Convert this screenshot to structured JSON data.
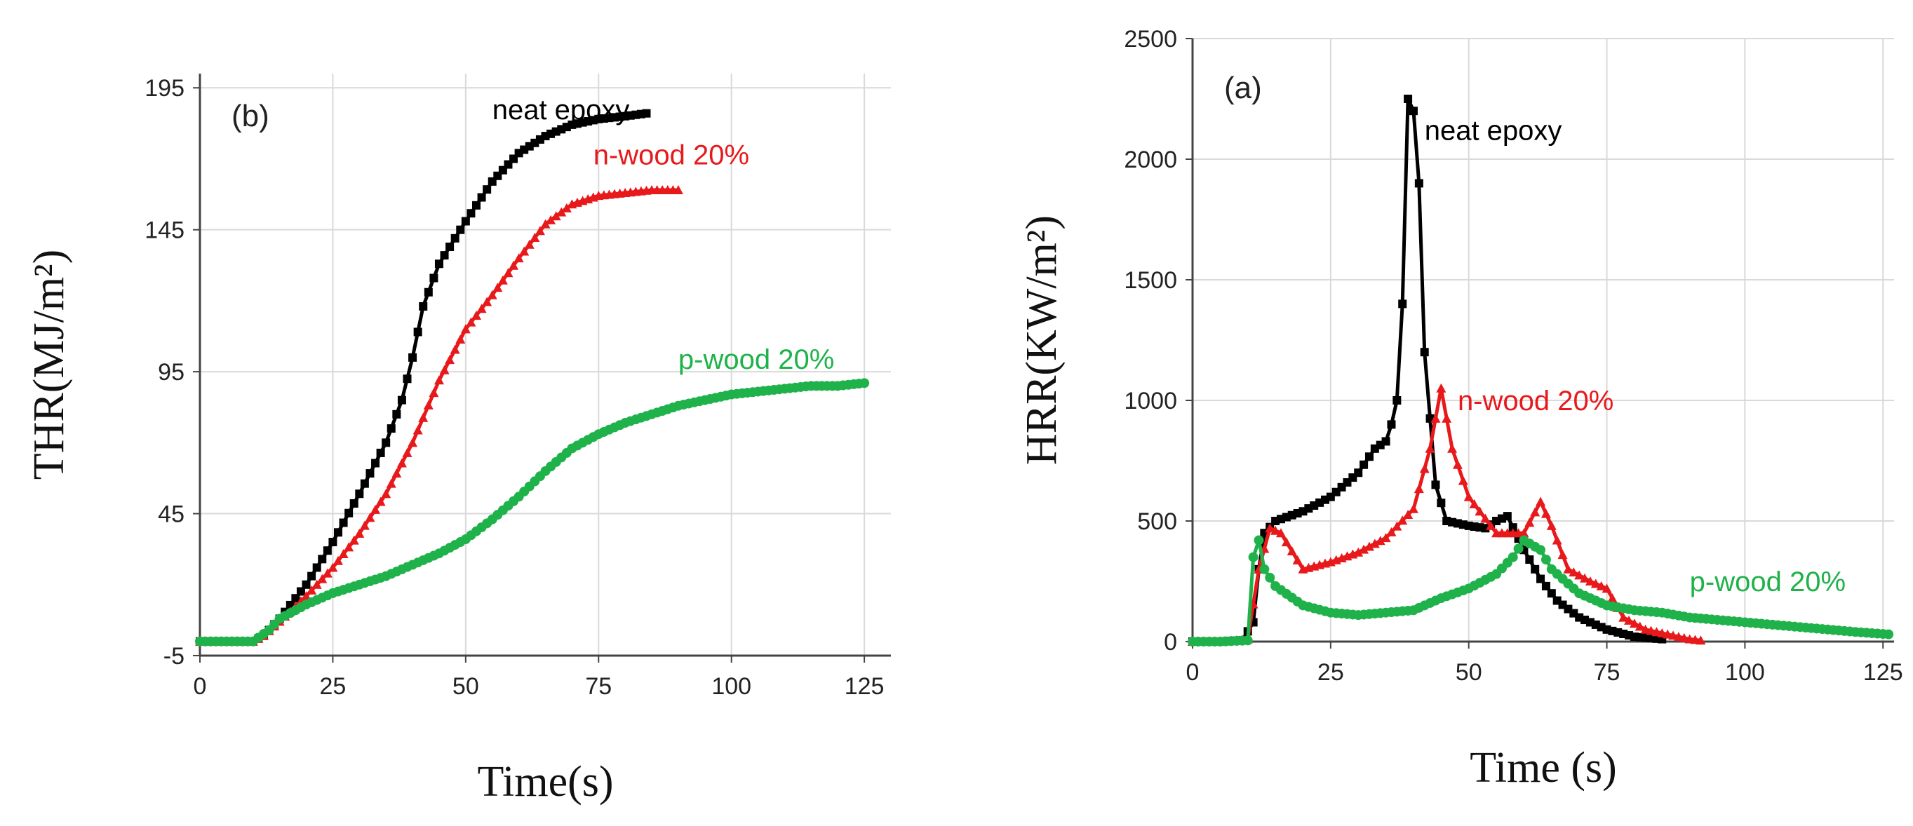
{
  "chart_data": [
    {
      "type": "scatter",
      "panel_label": "(b)",
      "xlabel": "Time(s)",
      "ylabel": "THR(MJ/m²)",
      "xlim": [
        0,
        130
      ],
      "ylim": [
        -5,
        200
      ],
      "xticks": [
        0,
        25,
        50,
        75,
        100,
        125
      ],
      "yticks": [
        -5,
        45,
        95,
        145,
        195
      ],
      "grid": true,
      "series": [
        {
          "name": "neat epoxy",
          "color": "#000000",
          "marker": "square",
          "label_at": [
            55,
            184
          ],
          "points": [
            [
              0,
              0
            ],
            [
              5,
              0
            ],
            [
              10,
              0
            ],
            [
              12,
              2
            ],
            [
              15,
              8
            ],
            [
              20,
              20
            ],
            [
              25,
              35
            ],
            [
              30,
              52
            ],
            [
              35,
              70
            ],
            [
              38,
              85
            ],
            [
              40,
              100
            ],
            [
              42,
              118
            ],
            [
              45,
              133
            ],
            [
              50,
              148
            ],
            [
              55,
              162
            ],
            [
              60,
              172
            ],
            [
              65,
              178
            ],
            [
              70,
              182
            ],
            [
              75,
              184
            ],
            [
              80,
              185
            ],
            [
              84,
              186
            ]
          ]
        },
        {
          "name": "n-wood 20%",
          "color": "#e8191b",
          "marker": "triangle",
          "label_at": [
            74,
            168
          ],
          "points": [
            [
              0,
              0
            ],
            [
              5,
              0
            ],
            [
              10,
              0
            ],
            [
              12,
              2
            ],
            [
              15,
              7
            ],
            [
              20,
              16
            ],
            [
              25,
              26
            ],
            [
              30,
              38
            ],
            [
              35,
              52
            ],
            [
              40,
              70
            ],
            [
              45,
              92
            ],
            [
              50,
              110
            ],
            [
              55,
              122
            ],
            [
              60,
              135
            ],
            [
              65,
              147
            ],
            [
              70,
              154
            ],
            [
              75,
              157
            ],
            [
              80,
              158
            ],
            [
              85,
              159
            ],
            [
              90,
              159
            ]
          ]
        },
        {
          "name": "p-wood 20%",
          "color": "#1fb24a",
          "marker": "circle",
          "label_at": [
            90,
            96
          ],
          "points": [
            [
              0,
              0
            ],
            [
              5,
              0
            ],
            [
              10,
              0
            ],
            [
              13,
              4
            ],
            [
              15,
              8
            ],
            [
              20,
              13
            ],
            [
              25,
              17
            ],
            [
              30,
              20
            ],
            [
              35,
              23
            ],
            [
              40,
              27
            ],
            [
              45,
              31
            ],
            [
              50,
              36
            ],
            [
              55,
              43
            ],
            [
              60,
              51
            ],
            [
              65,
              60
            ],
            [
              70,
              68
            ],
            [
              75,
              73
            ],
            [
              80,
              77
            ],
            [
              85,
              80
            ],
            [
              90,
              83
            ],
            [
              95,
              85
            ],
            [
              100,
              87
            ],
            [
              105,
              88
            ],
            [
              110,
              89
            ],
            [
              115,
              90
            ],
            [
              120,
              90
            ],
            [
              125,
              91
            ]
          ]
        }
      ]
    },
    {
      "type": "line",
      "panel_label": "(a)",
      "xlabel": "Time (s)",
      "ylabel": "HRR(KW/m²)",
      "xlim": [
        0,
        127
      ],
      "ylim": [
        0,
        2500
      ],
      "xticks": [
        0,
        25,
        50,
        75,
        100,
        125
      ],
      "yticks": [
        0,
        500,
        1000,
        1500,
        2000,
        2500
      ],
      "grid": true,
      "series": [
        {
          "name": "neat epoxy",
          "color": "#000000",
          "marker": "square",
          "label_at": [
            42,
            2080
          ],
          "points": [
            [
              0,
              0
            ],
            [
              5,
              0
            ],
            [
              9,
              5
            ],
            [
              11,
              80
            ],
            [
              12,
              300
            ],
            [
              13,
              450
            ],
            [
              15,
              500
            ],
            [
              20,
              540
            ],
            [
              25,
              600
            ],
            [
              30,
              700
            ],
            [
              33,
              800
            ],
            [
              35,
              830
            ],
            [
              36,
              900
            ],
            [
              37,
              1000
            ],
            [
              38,
              1400
            ],
            [
              39,
              2250
            ],
            [
              40,
              2200
            ],
            [
              41,
              1900
            ],
            [
              42,
              1200
            ],
            [
              44,
              650
            ],
            [
              46,
              500
            ],
            [
              50,
              480
            ],
            [
              53,
              470
            ],
            [
              55,
              500
            ],
            [
              57,
              520
            ],
            [
              60,
              380
            ],
            [
              63,
              260
            ],
            [
              66,
              170
            ],
            [
              70,
              100
            ],
            [
              75,
              50
            ],
            [
              80,
              20
            ],
            [
              85,
              10
            ]
          ]
        },
        {
          "name": "n-wood 20%",
          "color": "#e8191b",
          "marker": "triangle",
          "label_at": [
            48,
            960
          ],
          "points": [
            [
              0,
              0
            ],
            [
              5,
              0
            ],
            [
              10,
              10
            ],
            [
              12,
              300
            ],
            [
              14,
              470
            ],
            [
              16,
              450
            ],
            [
              20,
              300
            ],
            [
              25,
              330
            ],
            [
              30,
              370
            ],
            [
              35,
              430
            ],
            [
              40,
              550
            ],
            [
              43,
              800
            ],
            [
              45,
              1050
            ],
            [
              47,
              800
            ],
            [
              50,
              600
            ],
            [
              55,
              450
            ],
            [
              60,
              450
            ],
            [
              63,
              580
            ],
            [
              65,
              480
            ],
            [
              68,
              300
            ],
            [
              72,
              250
            ],
            [
              75,
              220
            ],
            [
              78,
              100
            ],
            [
              82,
              50
            ],
            [
              86,
              30
            ],
            [
              90,
              10
            ],
            [
              92,
              5
            ]
          ]
        },
        {
          "name": "p-wood 20%",
          "color": "#1fb24a",
          "marker": "circle",
          "label_at": [
            90,
            210
          ],
          "points": [
            [
              0,
              0
            ],
            [
              5,
              0
            ],
            [
              10,
              5
            ],
            [
              11,
              350
            ],
            [
              12,
              420
            ],
            [
              13,
              300
            ],
            [
              15,
              230
            ],
            [
              20,
              150
            ],
            [
              25,
              120
            ],
            [
              30,
              110
            ],
            [
              35,
              120
            ],
            [
              40,
              130
            ],
            [
              45,
              180
            ],
            [
              50,
              220
            ],
            [
              55,
              280
            ],
            [
              58,
              350
            ],
            [
              60,
              420
            ],
            [
              63,
              380
            ],
            [
              65,
              300
            ],
            [
              70,
              200
            ],
            [
              75,
              150
            ],
            [
              80,
              130
            ],
            [
              85,
              120
            ],
            [
              90,
              100
            ],
            [
              100,
              80
            ],
            [
              110,
              60
            ],
            [
              120,
              40
            ],
            [
              126,
              30
            ]
          ]
        }
      ]
    }
  ]
}
